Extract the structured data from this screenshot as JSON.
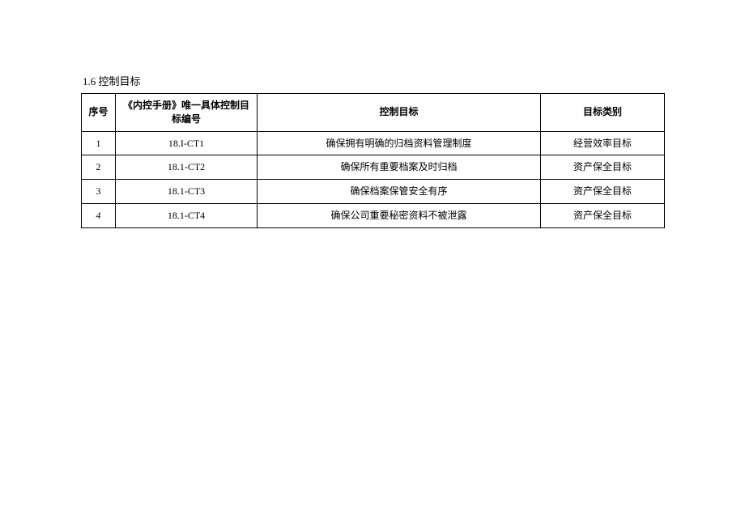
{
  "section_title": "1.6 控制目标",
  "table": {
    "columns": [
      "序号",
      "《内控手册》唯一具体控制目标编号",
      "控制目标",
      "目标类别"
    ],
    "rows": [
      {
        "idx": "1",
        "code": "18.I-CT1",
        "goal": "确保拥有明确的归档资料管理制度",
        "category": "经营效率目标",
        "idx_italic": false
      },
      {
        "idx": "2",
        "code": "18.1-CT2",
        "goal": "确保所有重要档案及时归档",
        "category": "资产保全目标",
        "idx_italic": false
      },
      {
        "idx": "3",
        "code": "18.1-CT3",
        "goal": "确保档案保管安全有序",
        "category": "资产保全目标",
        "idx_italic": false
      },
      {
        "idx": "4",
        "code": "18.1-CT4",
        "goal": "确保公司重要秘密资料不被泄露",
        "category": "资产保全目标",
        "idx_italic": true
      }
    ]
  }
}
